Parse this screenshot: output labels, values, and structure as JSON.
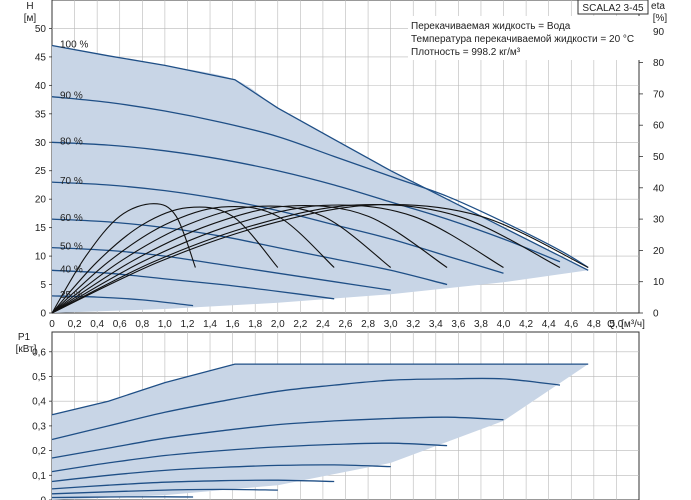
{
  "model": "SCALA2 3-45",
  "info_lines": [
    "Перекачиваемая жидкость = Вода",
    "Температура перекачиваемой жидкости = 20 °C",
    "Плотность = 998.2 кг/м³"
  ],
  "colors": {
    "envelope_fill": "#c8d5e6",
    "curve": "#1f4f86",
    "efficiency": "#111111",
    "grid": "#b9b9b9",
    "axis": "#333333"
  },
  "chart_data": [
    {
      "type": "line",
      "panel": "head",
      "ylabel": "H",
      "yunit": "[м]",
      "y2label": "eta",
      "y2unit": "[%]",
      "xlabel": "Q",
      "xunit": "[м³/ч]",
      "xlim": [
        0,
        5.2
      ],
      "ylim": [
        0,
        55
      ],
      "y2lim": [
        0,
        100
      ],
      "x_ticks": [
        "0",
        "0,2",
        "0,4",
        "0,6",
        "0,8",
        "1,0",
        "1,2",
        "1,4",
        "1,6",
        "1,8",
        "2,0",
        "2,2",
        "2,4",
        "2,6",
        "2,8",
        "3,0",
        "3,2",
        "3,4",
        "3,6",
        "3,8",
        "4,0",
        "4,2",
        "4,4",
        "4,6",
        "4,8",
        "5,0"
      ],
      "y_ticks": [
        0,
        5,
        10,
        15,
        20,
        25,
        30,
        35,
        40,
        45,
        50
      ],
      "y2_ticks": [
        0,
        10,
        20,
        30,
        40,
        50,
        60,
        70,
        80,
        90
      ],
      "grid": true,
      "envelope": [
        [
          0,
          47
        ],
        [
          1.62,
          41
        ],
        [
          4.75,
          7.5
        ],
        [
          0,
          0
        ]
      ],
      "series": [
        {
          "name": "100 %",
          "points": [
            [
              0,
              47
            ],
            [
              0.5,
              45.2
            ],
            [
              1.0,
              43.5
            ],
            [
              1.62,
              41
            ],
            [
              2.0,
              36
            ],
            [
              2.5,
              30.5
            ],
            [
              3.0,
              25
            ],
            [
              3.5,
              20
            ],
            [
              4.0,
              15
            ],
            [
              4.5,
              10
            ],
            [
              4.75,
              7.5
            ]
          ]
        },
        {
          "name": "90 %",
          "points": [
            [
              0,
              38
            ],
            [
              0.5,
              37
            ],
            [
              1.0,
              35.5
            ],
            [
              1.5,
              33.5
            ],
            [
              2.0,
              31
            ],
            [
              2.5,
              27.5
            ],
            [
              3.0,
              24
            ],
            [
              3.5,
              20.5
            ],
            [
              4.0,
              16
            ],
            [
              4.5,
              11
            ],
            [
              4.75,
              8
            ]
          ]
        },
        {
          "name": "80 %",
          "points": [
            [
              0,
              30
            ],
            [
              0.5,
              29.5
            ],
            [
              1.0,
              28.5
            ],
            [
              1.5,
              27
            ],
            [
              2.0,
              25
            ],
            [
              2.5,
              22.5
            ],
            [
              3.0,
              19.5
            ],
            [
              3.5,
              16.5
            ],
            [
              4.0,
              13
            ],
            [
              4.5,
              9
            ]
          ]
        },
        {
          "name": "70 %",
          "points": [
            [
              0,
              23
            ],
            [
              0.5,
              22.5
            ],
            [
              1.0,
              21.5
            ],
            [
              1.5,
              20
            ],
            [
              2.0,
              18
            ],
            [
              2.5,
              15.5
            ],
            [
              3.0,
              13
            ],
            [
              3.5,
              10
            ],
            [
              4.0,
              7
            ]
          ]
        },
        {
          "name": "60 %",
          "points": [
            [
              0,
              16.5
            ],
            [
              0.5,
              16
            ],
            [
              1.0,
              15
            ],
            [
              1.5,
              13.5
            ],
            [
              2.0,
              11.5
            ],
            [
              2.5,
              9.5
            ],
            [
              3.0,
              7.5
            ],
            [
              3.5,
              5
            ]
          ]
        },
        {
          "name": "50 %",
          "points": [
            [
              0,
              11.5
            ],
            [
              0.5,
              11
            ],
            [
              1.0,
              10
            ],
            [
              1.5,
              8.5
            ],
            [
              2.0,
              7
            ],
            [
              2.5,
              5.5
            ],
            [
              3.0,
              4
            ]
          ]
        },
        {
          "name": "40 %",
          "points": [
            [
              0,
              7.5
            ],
            [
              0.5,
              7
            ],
            [
              1.0,
              6
            ],
            [
              1.5,
              5
            ],
            [
              2.0,
              3.8
            ],
            [
              2.5,
              2.5
            ]
          ]
        },
        {
          "name": "25 %",
          "points": [
            [
              0,
              3
            ],
            [
              0.4,
              2.8
            ],
            [
              0.8,
              2.3
            ],
            [
              1.25,
              1.3
            ]
          ]
        }
      ],
      "efficiency_curves": [
        {
          "points": [
            [
              0,
              0
            ],
            [
              0.3,
              10
            ],
            [
              0.6,
              17
            ],
            [
              0.9,
              19.2
            ],
            [
              1.1,
              17
            ],
            [
              1.27,
              8
            ]
          ]
        },
        {
          "points": [
            [
              0,
              0
            ],
            [
              0.4,
              9
            ],
            [
              0.8,
              15.5
            ],
            [
              1.2,
              18.5
            ],
            [
              1.6,
              17
            ],
            [
              2.0,
              8
            ]
          ]
        },
        {
          "points": [
            [
              0,
              0
            ],
            [
              0.5,
              9
            ],
            [
              1.0,
              15.5
            ],
            [
              1.5,
              18.6
            ],
            [
              2.0,
              17
            ],
            [
              2.5,
              8
            ]
          ]
        },
        {
          "points": [
            [
              0,
              0
            ],
            [
              0.6,
              9
            ],
            [
              1.2,
              15.5
            ],
            [
              1.8,
              18.7
            ],
            [
              2.4,
              17
            ],
            [
              3.0,
              8
            ]
          ]
        },
        {
          "points": [
            [
              0,
              0
            ],
            [
              0.7,
              9
            ],
            [
              1.4,
              15.5
            ],
            [
              2.1,
              18.8
            ],
            [
              2.8,
              17
            ],
            [
              3.5,
              8
            ]
          ]
        },
        {
          "points": [
            [
              0,
              0
            ],
            [
              0.8,
              9
            ],
            [
              1.6,
              15.5
            ],
            [
              2.4,
              18.9
            ],
            [
              3.2,
              17
            ],
            [
              4.0,
              8
            ]
          ]
        },
        {
          "points": [
            [
              0,
              0
            ],
            [
              0.9,
              9
            ],
            [
              1.8,
              15.5
            ],
            [
              2.7,
              19
            ],
            [
              3.6,
              17
            ],
            [
              4.5,
              8
            ]
          ]
        },
        {
          "points": [
            [
              0,
              0
            ],
            [
              0.95,
              9
            ],
            [
              1.9,
              15.5
            ],
            [
              2.85,
              19
            ],
            [
              3.8,
              17
            ],
            [
              4.75,
              8
            ]
          ]
        }
      ]
    },
    {
      "type": "line",
      "panel": "power",
      "ylabel": "P1",
      "yunit": "[кВт]",
      "xlim": [
        0,
        5.2
      ],
      "ylim": [
        0,
        0.68
      ],
      "y_ticks": [
        "0",
        "0,1",
        "0,2",
        "0,3",
        "0,4",
        "0,5",
        "0,6"
      ],
      "grid": true,
      "envelope": [
        [
          0,
          0.345
        ],
        [
          1.62,
          0.55
        ],
        [
          4.75,
          0.55
        ],
        [
          4.75,
          0
        ],
        [
          0,
          0
        ]
      ],
      "series": [
        {
          "name": "100 %",
          "points": [
            [
              0,
              0.345
            ],
            [
              0.5,
              0.4
            ],
            [
              1.0,
              0.475
            ],
            [
              1.62,
              0.55
            ],
            [
              4.75,
              0.55
            ]
          ]
        },
        {
          "name": "90 %",
          "points": [
            [
              0,
              0.245
            ],
            [
              0.5,
              0.3
            ],
            [
              1.0,
              0.355
            ],
            [
              1.5,
              0.4
            ],
            [
              2.0,
              0.44
            ],
            [
              2.5,
              0.465
            ],
            [
              3.0,
              0.485
            ],
            [
              3.5,
              0.49
            ],
            [
              4.0,
              0.49
            ],
            [
              4.5,
              0.465
            ]
          ]
        },
        {
          "name": "80 %",
          "points": [
            [
              0,
              0.17
            ],
            [
              0.5,
              0.21
            ],
            [
              1.0,
              0.25
            ],
            [
              1.5,
              0.28
            ],
            [
              2.0,
              0.305
            ],
            [
              2.5,
              0.32
            ],
            [
              3.0,
              0.33
            ],
            [
              3.5,
              0.335
            ],
            [
              4.0,
              0.325
            ]
          ]
        },
        {
          "name": "70 %",
          "points": [
            [
              0,
              0.115
            ],
            [
              0.5,
              0.15
            ],
            [
              1.0,
              0.18
            ],
            [
              1.5,
              0.2
            ],
            [
              2.0,
              0.215
            ],
            [
              2.5,
              0.225
            ],
            [
              3.0,
              0.23
            ],
            [
              3.5,
              0.22
            ]
          ]
        },
        {
          "name": "60 %",
          "points": [
            [
              0,
              0.075
            ],
            [
              0.5,
              0.1
            ],
            [
              1.0,
              0.12
            ],
            [
              1.5,
              0.132
            ],
            [
              2.0,
              0.14
            ],
            [
              2.5,
              0.142
            ],
            [
              3.0,
              0.135
            ]
          ]
        },
        {
          "name": "50 %",
          "points": [
            [
              0,
              0.045
            ],
            [
              0.5,
              0.06
            ],
            [
              1.0,
              0.072
            ],
            [
              1.5,
              0.078
            ],
            [
              2.0,
              0.08
            ],
            [
              2.5,
              0.075
            ]
          ]
        },
        {
          "name": "40 %",
          "points": [
            [
              0,
              0.025
            ],
            [
              0.5,
              0.033
            ],
            [
              1.0,
              0.04
            ],
            [
              1.5,
              0.043
            ],
            [
              2.0,
              0.04
            ]
          ]
        },
        {
          "name": "25 %",
          "points": [
            [
              0,
              0.01
            ],
            [
              0.5,
              0.012
            ],
            [
              1.0,
              0.013
            ],
            [
              1.25,
              0.012
            ]
          ]
        }
      ]
    }
  ]
}
